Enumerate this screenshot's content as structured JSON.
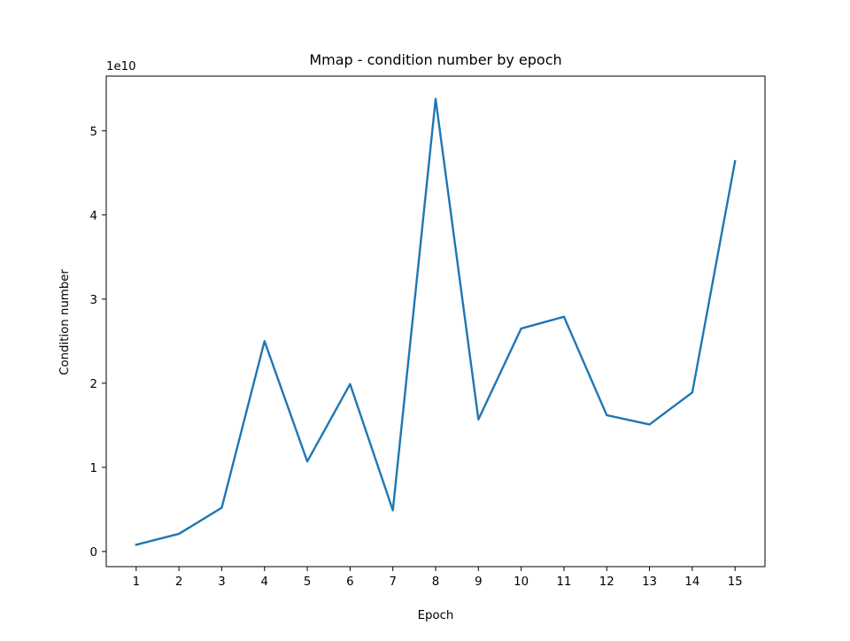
{
  "chart_data": {
    "type": "line",
    "title": "Mmap - condition number by epoch",
    "xlabel": "Epoch",
    "ylabel": "Condition number",
    "y_offset_label": "1e10",
    "y_scale_factor": 10000000000,
    "x": [
      1,
      2,
      3,
      4,
      5,
      6,
      7,
      8,
      9,
      10,
      11,
      12,
      13,
      14,
      15
    ],
    "series": [
      {
        "color": "#1f77b4",
        "values": [
          800000000,
          2100000000,
          5200000000,
          25000000000,
          10700000000,
          19900000000,
          4900000000,
          53800000000,
          15700000000,
          26500000000,
          27900000000,
          16200000000,
          15100000000,
          18900000000,
          46400000000
        ]
      }
    ],
    "xticks": [
      "1",
      "2",
      "3",
      "4",
      "5",
      "6",
      "7",
      "8",
      "9",
      "10",
      "11",
      "12",
      "13",
      "14",
      "15"
    ],
    "yticks": [
      "0",
      "1",
      "2",
      "3",
      "4",
      "5"
    ],
    "ytick_values": [
      0,
      10000000000,
      20000000000,
      30000000000,
      40000000000,
      50000000000
    ],
    "xlim": [
      0.3,
      15.7
    ],
    "ylim": [
      -1800000000,
      56500000000
    ],
    "grid": false,
    "legend": "none"
  }
}
